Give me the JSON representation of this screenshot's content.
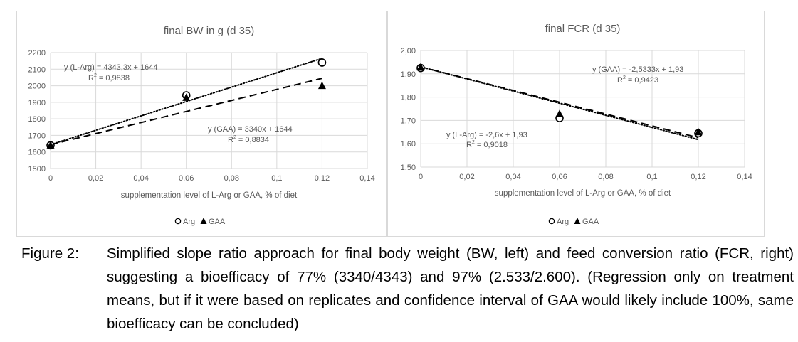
{
  "chart_data": [
    {
      "type": "scatter",
      "title": "final BW in g (d 35)",
      "xlabel": "supplementation level of L-Arg or GAA, % of diet",
      "ylabel": "",
      "xlim": [
        0,
        0.14
      ],
      "ylim": [
        1500,
        2200
      ],
      "x_ticks": [
        "0",
        "0,02",
        "0,04",
        "0,06",
        "0,08",
        "0,1",
        "0,12",
        "0,14"
      ],
      "y_ticks": [
        "1500",
        "1600",
        "1700",
        "1800",
        "1900",
        "2000",
        "2100",
        "2200"
      ],
      "grid": true,
      "legend_position": "bottom",
      "series": [
        {
          "name": "Arg",
          "marker": "circle",
          "x": [
            0,
            0.06,
            0.12
          ],
          "y": [
            1640,
            1942,
            2140
          ]
        },
        {
          "name": "GAA",
          "marker": "triangle",
          "x": [
            0,
            0.06,
            0.12
          ],
          "y": [
            1640,
            1928,
            2000
          ]
        }
      ],
      "trendlines": [
        {
          "series": "Arg",
          "style": "dotted",
          "slope": 4343.3,
          "intercept": 1644,
          "equation": "y (L-Arg) = 4343,3x + 1644",
          "r2_label": "R",
          "r2_value": " = 0,9838"
        },
        {
          "series": "GAA",
          "style": "dashed",
          "slope": 3340,
          "intercept": 1644,
          "equation": "y (GAA) = 3340x + 1644",
          "r2_label": "R",
          "r2_value": " = 0,8834"
        }
      ]
    },
    {
      "type": "scatter",
      "title": "final FCR (d 35)",
      "xlabel": "supplementation level of L-Arg or GAA, % of diet",
      "ylabel": "",
      "xlim": [
        0,
        0.14
      ],
      "ylim": [
        1.5,
        2.0
      ],
      "x_ticks": [
        "0",
        "0,02",
        "0,04",
        "0,06",
        "0,08",
        "0,1",
        "0,12",
        "0,14"
      ],
      "y_ticks": [
        "1,50",
        "1,60",
        "1,70",
        "1,80",
        "1,90",
        "2,00"
      ],
      "grid": true,
      "legend_position": "bottom",
      "series": [
        {
          "name": "Arg",
          "marker": "circle",
          "x": [
            0,
            0.06,
            0.12
          ],
          "y": [
            1.925,
            1.71,
            1.645
          ]
        },
        {
          "name": "GAA",
          "marker": "triangle",
          "x": [
            0,
            0.06,
            0.12
          ],
          "y": [
            1.928,
            1.728,
            1.65
          ]
        }
      ],
      "trendlines": [
        {
          "series": "Arg",
          "style": "dotted",
          "slope": -2.6,
          "intercept": 1.93,
          "equation": "y (L-Arg) = -2,6x + 1,93",
          "r2_label": "R",
          "r2_value": " = 0,9018"
        },
        {
          "series": "GAA",
          "style": "dashed",
          "slope": -2.5333,
          "intercept": 1.93,
          "equation": "y (GAA) = -2,5333x + 1,93",
          "r2_label": "R",
          "r2_value": " = 0,9423"
        }
      ]
    }
  ],
  "caption": {
    "label": "Figure 2:",
    "text": "Simplified slope ratio approach for final body weight (BW, left) and feed conversion ratio (FCR, right) suggesting a bioefficacy of 77% (3340/4343) and 97% (2.533/2.600). (Regression only on treatment means, but if it were based on replicates and confidence interval of GAA would likely include 100%, same bioefficacy can be concluded)"
  },
  "colors": {
    "grid": "#d9d9d9",
    "axis_text": "#595959",
    "marker": "#000000"
  }
}
